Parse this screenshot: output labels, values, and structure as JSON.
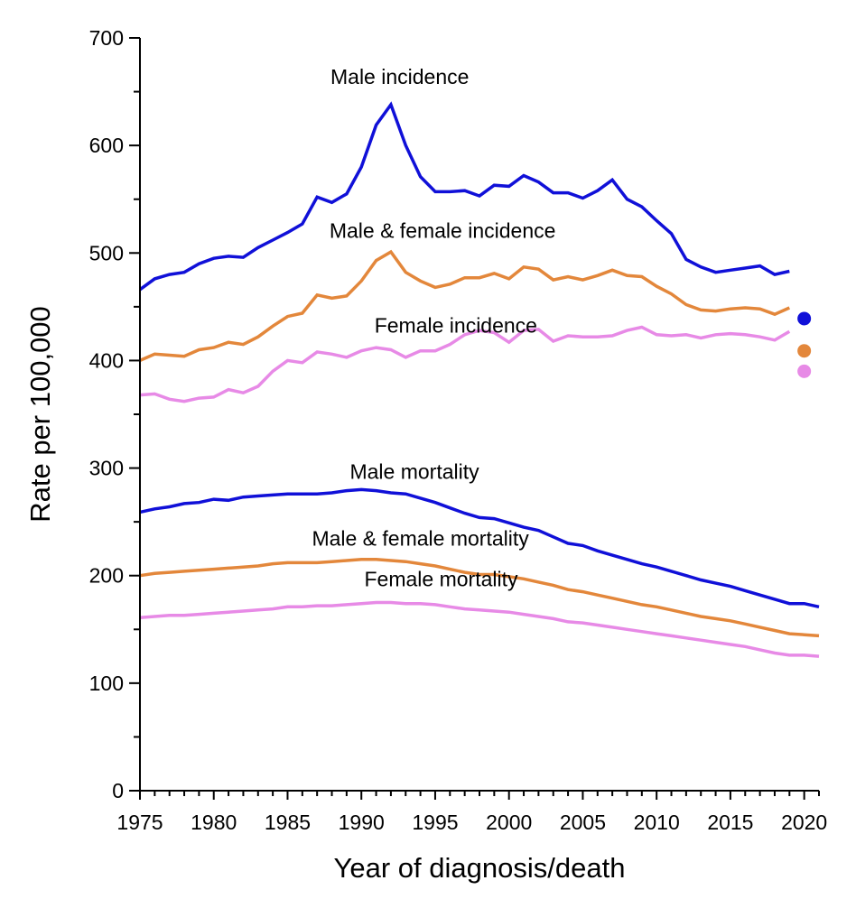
{
  "chart_data": {
    "type": "line",
    "title": "",
    "xlabel": "Year of diagnosis/death",
    "ylabel": "Rate per 100,000",
    "xlim": [
      1975,
      2021
    ],
    "ylim": [
      0,
      700
    ],
    "x_ticks": [
      1975,
      1980,
      1985,
      1990,
      1995,
      2000,
      2005,
      2010,
      2015,
      2020
    ],
    "y_ticks": [
      0,
      100,
      200,
      300,
      400,
      500,
      600,
      700
    ],
    "grid": false,
    "colors": {
      "male": "#1010d8",
      "both": "#e3873b",
      "female": "#e78ae6"
    },
    "series": [
      {
        "name": "Male incidence",
        "color_key": "male",
        "x": [
          1975,
          1976,
          1977,
          1978,
          1979,
          1980,
          1981,
          1982,
          1983,
          1984,
          1985,
          1986,
          1987,
          1988,
          1989,
          1990,
          1991,
          1992,
          1993,
          1994,
          1995,
          1996,
          1997,
          1998,
          1999,
          2000,
          2001,
          2002,
          2003,
          2004,
          2005,
          2006,
          2007,
          2008,
          2009,
          2010,
          2011,
          2012,
          2013,
          2014,
          2015,
          2016,
          2017,
          2018,
          2019
        ],
        "y": [
          466,
          476,
          480,
          482,
          490,
          495,
          497,
          496,
          505,
          512,
          519,
          527,
          552,
          547,
          555,
          580,
          619,
          638,
          600,
          571,
          557,
          557,
          558,
          553,
          563,
          562,
          572,
          566,
          556,
          556,
          551,
          558,
          568,
          550,
          543,
          530,
          518,
          494,
          487,
          482,
          484,
          486,
          488,
          480,
          483
        ]
      },
      {
        "name": "Male & female incidence",
        "color_key": "both",
        "x": [
          1975,
          1976,
          1977,
          1978,
          1979,
          1980,
          1981,
          1982,
          1983,
          1984,
          1985,
          1986,
          1987,
          1988,
          1989,
          1990,
          1991,
          1992,
          1993,
          1994,
          1995,
          1996,
          1997,
          1998,
          1999,
          2000,
          2001,
          2002,
          2003,
          2004,
          2005,
          2006,
          2007,
          2008,
          2009,
          2010,
          2011,
          2012,
          2013,
          2014,
          2015,
          2016,
          2017,
          2018,
          2019
        ],
        "y": [
          400,
          406,
          405,
          404,
          410,
          412,
          417,
          415,
          422,
          432,
          441,
          444,
          461,
          458,
          460,
          474,
          493,
          501,
          482,
          474,
          468,
          471,
          477,
          477,
          481,
          476,
          487,
          485,
          475,
          478,
          475,
          479,
          484,
          479,
          478,
          469,
          462,
          452,
          447,
          446,
          448,
          449,
          448,
          443,
          449
        ]
      },
      {
        "name": "Female incidence",
        "color_key": "female",
        "x": [
          1975,
          1976,
          1977,
          1978,
          1979,
          1980,
          1981,
          1982,
          1983,
          1984,
          1985,
          1986,
          1987,
          1988,
          1989,
          1990,
          1991,
          1992,
          1993,
          1994,
          1995,
          1996,
          1997,
          1998,
          1999,
          2000,
          2001,
          2002,
          2003,
          2004,
          2005,
          2006,
          2007,
          2008,
          2009,
          2010,
          2011,
          2012,
          2013,
          2014,
          2015,
          2016,
          2017,
          2018,
          2019
        ],
        "y": [
          368,
          369,
          364,
          362,
          365,
          366,
          373,
          370,
          376,
          390,
          400,
          398,
          408,
          406,
          403,
          409,
          412,
          410,
          403,
          409,
          409,
          415,
          424,
          428,
          426,
          417,
          428,
          429,
          418,
          423,
          422,
          422,
          423,
          428,
          431,
          424,
          423,
          424,
          421,
          424,
          425,
          424,
          422,
          419,
          427
        ]
      },
      {
        "name": "Male mortality",
        "color_key": "male",
        "x": [
          1975,
          1976,
          1977,
          1978,
          1979,
          1980,
          1981,
          1982,
          1983,
          1984,
          1985,
          1986,
          1987,
          1988,
          1989,
          1990,
          1991,
          1992,
          1993,
          1994,
          1995,
          1996,
          1997,
          1998,
          1999,
          2000,
          2001,
          2002,
          2003,
          2004,
          2005,
          2006,
          2007,
          2008,
          2009,
          2010,
          2011,
          2012,
          2013,
          2014,
          2015,
          2016,
          2017,
          2018,
          2019,
          2020,
          2021
        ],
        "y": [
          259,
          262,
          264,
          267,
          268,
          271,
          270,
          273,
          274,
          275,
          276,
          276,
          276,
          277,
          279,
          280,
          279,
          277,
          276,
          272,
          268,
          263,
          258,
          254,
          253,
          249,
          245,
          242,
          236,
          230,
          228,
          223,
          219,
          215,
          211,
          208,
          204,
          200,
          196,
          193,
          190,
          186,
          182,
          178,
          174,
          174,
          171
        ]
      },
      {
        "name": "Male & female mortality",
        "color_key": "both",
        "x": [
          1975,
          1976,
          1977,
          1978,
          1979,
          1980,
          1981,
          1982,
          1983,
          1984,
          1985,
          1986,
          1987,
          1988,
          1989,
          1990,
          1991,
          1992,
          1993,
          1994,
          1995,
          1996,
          1997,
          1998,
          1999,
          2000,
          2001,
          2002,
          2003,
          2004,
          2005,
          2006,
          2007,
          2008,
          2009,
          2010,
          2011,
          2012,
          2013,
          2014,
          2015,
          2016,
          2017,
          2018,
          2019,
          2020,
          2021
        ],
        "y": [
          200,
          202,
          203,
          204,
          205,
          206,
          207,
          208,
          209,
          211,
          212,
          212,
          212,
          213,
          214,
          215,
          215,
          214,
          213,
          211,
          209,
          206,
          203,
          201,
          201,
          199,
          197,
          194,
          191,
          187,
          185,
          182,
          179,
          176,
          173,
          171,
          168,
          165,
          162,
          160,
          158,
          155,
          152,
          149,
          146,
          145,
          144
        ]
      },
      {
        "name": "Female mortality",
        "color_key": "female",
        "x": [
          1975,
          1976,
          1977,
          1978,
          1979,
          1980,
          1981,
          1982,
          1983,
          1984,
          1985,
          1986,
          1987,
          1988,
          1989,
          1990,
          1991,
          1992,
          1993,
          1994,
          1995,
          1996,
          1997,
          1998,
          1999,
          2000,
          2001,
          2002,
          2003,
          2004,
          2005,
          2006,
          2007,
          2008,
          2009,
          2010,
          2011,
          2012,
          2013,
          2014,
          2015,
          2016,
          2017,
          2018,
          2019,
          2020,
          2021
        ],
        "y": [
          161,
          162,
          163,
          163,
          164,
          165,
          166,
          167,
          168,
          169,
          171,
          171,
          172,
          172,
          173,
          174,
          175,
          175,
          174,
          174,
          173,
          171,
          169,
          168,
          167,
          166,
          164,
          162,
          160,
          157,
          156,
          154,
          152,
          150,
          148,
          146,
          144,
          142,
          140,
          138,
          136,
          134,
          131,
          128,
          126,
          126,
          125
        ]
      }
    ],
    "points": [
      {
        "name": "Male incidence 2020",
        "x": 2020,
        "y": 439,
        "color_key": "male"
      },
      {
        "name": "Male & female incidence 2020",
        "x": 2020,
        "y": 409,
        "color_key": "both"
      },
      {
        "name": "Female incidence 2020",
        "x": 2020,
        "y": 390,
        "color_key": "female"
      }
    ],
    "annotations": [
      {
        "text": "Male incidence",
        "x": 1992.6,
        "y": 657
      },
      {
        "text": "Male & female incidence",
        "x": 1995.5,
        "y": 514
      },
      {
        "text": "Female incidence",
        "x": 1996.4,
        "y": 426
      },
      {
        "text": "Male mortality",
        "x": 1993.6,
        "y": 290
      },
      {
        "text": "Male & female mortality",
        "x": 1994.0,
        "y": 228
      },
      {
        "text": "Female mortality",
        "x": 1995.4,
        "y": 190
      }
    ]
  }
}
